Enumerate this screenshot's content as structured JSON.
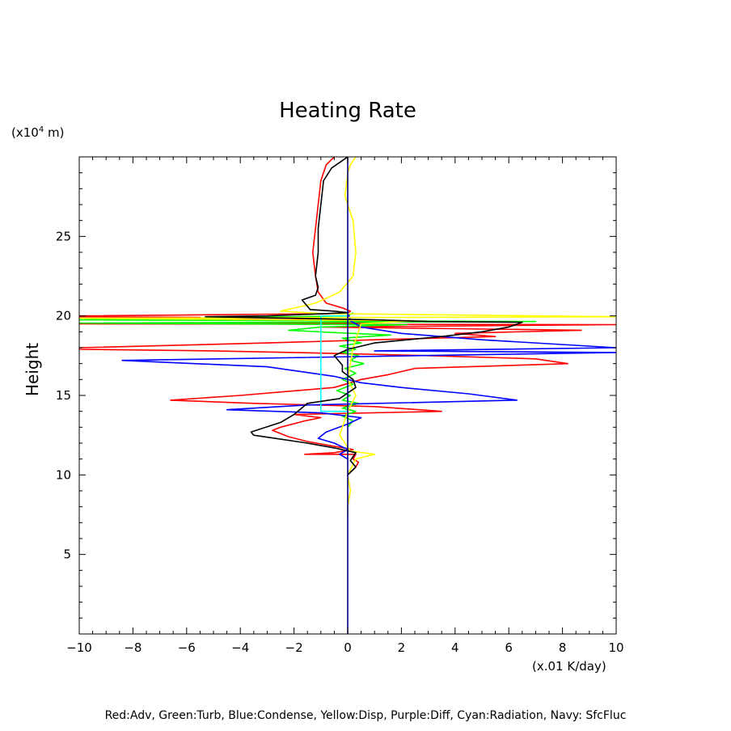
{
  "chart_data": {
    "type": "line",
    "title": "Heating Rate",
    "xlabel": "(x.01 K/day)",
    "ylabel": "Height",
    "y_unit": {
      "base": "(x10",
      "exponent": "4",
      "suffix": " m)"
    },
    "xlim": [
      -10,
      10
    ],
    "ylim": [
      0,
      30
    ],
    "x_ticks": [
      -10,
      -8,
      -6,
      -4,
      -2,
      0,
      2,
      4,
      6,
      8,
      10
    ],
    "y_ticks": [
      5,
      10,
      15,
      20,
      25
    ],
    "grid": false,
    "note": "Red:Adv, Green:Turb, Blue:Condense, Yellow:Disp, Purple:Diff, Cyan:Radiation, Navy: SfcFluc",
    "series": [
      {
        "name": "Adv",
        "color": "#ff0000",
        "points": [
          [
            -0.5,
            30
          ],
          [
            -0.8,
            29.5
          ],
          [
            -1.0,
            28.5
          ],
          [
            -1.1,
            27
          ],
          [
            -1.2,
            25.5
          ],
          [
            -1.3,
            24
          ],
          [
            -1.2,
            22.5
          ],
          [
            -1.1,
            21.5
          ],
          [
            -0.8,
            20.8
          ],
          [
            -0.2,
            20.5
          ],
          [
            0.1,
            20.3
          ],
          [
            0,
            20.15
          ],
          [
            -10,
            20.0
          ],
          [
            -10,
            19.95
          ],
          [
            -5.5,
            19.9
          ],
          [
            -8,
            19.85
          ],
          [
            -1,
            19.75
          ],
          [
            2,
            19.65
          ],
          [
            1,
            19.55
          ],
          [
            -10,
            19.5
          ],
          [
            10,
            19.45
          ],
          [
            -1,
            19.3
          ],
          [
            8.7,
            19.1
          ],
          [
            4,
            18.9
          ],
          [
            5.5,
            18.7
          ],
          [
            1,
            18.5
          ],
          [
            -3,
            18.3
          ],
          [
            -10,
            18.0
          ],
          [
            -10,
            17.9
          ],
          [
            -5,
            17.8
          ],
          [
            -2,
            17.7
          ],
          [
            3,
            17.5
          ],
          [
            7,
            17.3
          ],
          [
            8.2,
            17.0
          ],
          [
            2.5,
            16.7
          ],
          [
            1.5,
            16.3
          ],
          [
            0.5,
            16.0
          ],
          [
            -0.5,
            15.5
          ],
          [
            -4,
            15.0
          ],
          [
            -6.6,
            14.7
          ],
          [
            -3.5,
            14.5
          ],
          [
            1,
            14.3
          ],
          [
            3.5,
            14.0
          ],
          [
            -2,
            13.8
          ],
          [
            -1,
            13.6
          ],
          [
            -1.6,
            13.4
          ],
          [
            -2.5,
            13.0
          ],
          [
            -2.8,
            12.8
          ],
          [
            -2.2,
            12.4
          ],
          [
            -1.5,
            12.1
          ],
          [
            -0.5,
            11.8
          ],
          [
            0.2,
            11.6
          ],
          [
            -0.5,
            11.4
          ],
          [
            -1.6,
            11.3
          ],
          [
            0.3,
            11.3
          ],
          [
            0.2,
            11.0
          ],
          [
            0.4,
            10.8
          ],
          [
            0.3,
            10.5
          ],
          [
            0.0,
            10.0
          ]
        ]
      },
      {
        "name": "Turb",
        "color": "#00ff00",
        "points": [
          [
            0.2,
            20.2
          ],
          [
            0,
            20.0
          ],
          [
            -4,
            19.9
          ],
          [
            -10,
            19.75
          ],
          [
            7,
            19.65
          ],
          [
            -10,
            19.55
          ],
          [
            2.2,
            19.45
          ],
          [
            -1,
            19.3
          ],
          [
            -2.2,
            19.1
          ],
          [
            -0.5,
            18.95
          ],
          [
            1.6,
            18.8
          ],
          [
            -0.2,
            18.6
          ],
          [
            0.5,
            18.3
          ],
          [
            -0.3,
            18.1
          ],
          [
            0.3,
            17.9
          ],
          [
            -0.2,
            17.7
          ],
          [
            0.4,
            17.5
          ],
          [
            0.1,
            17.2
          ],
          [
            0.6,
            17.0
          ],
          [
            -0.1,
            16.7
          ],
          [
            0.3,
            16.4
          ],
          [
            -0.2,
            16.0
          ],
          [
            0.2,
            15.7
          ],
          [
            -0.4,
            15.3
          ],
          [
            0.1,
            15.0
          ],
          [
            -0.2,
            14.7
          ],
          [
            0.4,
            14.5
          ],
          [
            -0.2,
            14.2
          ],
          [
            0.3,
            14.0
          ],
          [
            -0.2,
            13.7
          ],
          [
            0.2,
            13.4
          ],
          [
            0,
            13.0
          ]
        ]
      },
      {
        "name": "Condense",
        "color": "#0000ff",
        "points": [
          [
            0,
            20.3
          ],
          [
            0.1,
            19.7
          ],
          [
            0.5,
            19.3
          ],
          [
            2,
            18.9
          ],
          [
            5,
            18.5
          ],
          [
            10,
            18.0
          ],
          [
            1,
            17.8
          ],
          [
            10,
            17.7
          ],
          [
            -8.4,
            17.2
          ],
          [
            -3,
            16.8
          ],
          [
            -0.5,
            16.2
          ],
          [
            0.5,
            15.8
          ],
          [
            2,
            15.5
          ],
          [
            4.5,
            15.1
          ],
          [
            6.3,
            14.7
          ],
          [
            -1.5,
            14.4
          ],
          [
            -4.5,
            14.1
          ],
          [
            -1,
            13.9
          ],
          [
            0.5,
            13.6
          ],
          [
            0,
            13.2
          ],
          [
            -0.8,
            12.7
          ],
          [
            -1.1,
            12.3
          ],
          [
            -0.5,
            12.0
          ],
          [
            0,
            11.6
          ],
          [
            -0.3,
            11.3
          ],
          [
            0,
            11.0
          ]
        ]
      },
      {
        "name": "Disp",
        "color": "#ffff00",
        "points": [
          [
            0.3,
            30
          ],
          [
            0.1,
            29.5
          ],
          [
            0,
            29
          ],
          [
            -0.1,
            27.5
          ],
          [
            0.2,
            26
          ],
          [
            0.3,
            24
          ],
          [
            0.2,
            22.5
          ],
          [
            -0.3,
            21.5
          ],
          [
            -1.2,
            20.8
          ],
          [
            -2.5,
            20.3
          ],
          [
            -1,
            20.15
          ],
          [
            10,
            19.95
          ],
          [
            -10,
            19.85
          ],
          [
            2.5,
            19.7
          ],
          [
            0.5,
            19.5
          ],
          [
            0.2,
            18.0
          ],
          [
            0,
            16.0
          ],
          [
            0.3,
            15.0
          ],
          [
            0,
            14.0
          ],
          [
            -0.3,
            12.5
          ],
          [
            0.1,
            11.5
          ],
          [
            1,
            11.3
          ],
          [
            0.3,
            11.0
          ],
          [
            0,
            10.0
          ],
          [
            0.1,
            9.0
          ],
          [
            0,
            8.0
          ],
          [
            0,
            7.5
          ]
        ]
      },
      {
        "name": "Radiation",
        "color": "#00ffff",
        "points": [
          [
            0,
            20.0
          ],
          [
            -1,
            20.0
          ],
          [
            -1,
            14.0
          ],
          [
            0,
            14.0
          ]
        ]
      },
      {
        "name": "Diff",
        "color": "#000000",
        "points": [
          [
            0,
            30
          ],
          [
            -0.6,
            29.3
          ],
          [
            -0.9,
            28.5
          ],
          [
            -1.0,
            27
          ],
          [
            -1.1,
            25.5
          ],
          [
            -1.1,
            24
          ],
          [
            -1.2,
            22.5
          ],
          [
            -1.1,
            21.8
          ],
          [
            -1.2,
            21.3
          ],
          [
            -1.7,
            21
          ],
          [
            -1.4,
            20.4
          ],
          [
            -0.5,
            20.3
          ],
          [
            0,
            20.2
          ],
          [
            -3,
            20.0
          ],
          [
            -5.3,
            19.95
          ],
          [
            -2,
            19.85
          ],
          [
            1,
            19.75
          ],
          [
            3,
            19.65
          ],
          [
            6.5,
            19.6
          ],
          [
            6,
            19.3
          ],
          [
            5,
            19.0
          ],
          [
            3.5,
            18.7
          ],
          [
            1,
            18.3
          ],
          [
            0,
            17.9
          ],
          [
            -0.5,
            17.5
          ],
          [
            -0.2,
            16.9
          ],
          [
            -0.2,
            16.5
          ],
          [
            0.2,
            16.0
          ],
          [
            0.3,
            15.5
          ],
          [
            -0.3,
            14.8
          ],
          [
            -1.5,
            14.5
          ],
          [
            -2,
            13.8
          ],
          [
            -2.5,
            13.3
          ],
          [
            -3.6,
            12.7
          ],
          [
            -3.5,
            12.5
          ],
          [
            -1.5,
            12.0
          ],
          [
            -0.5,
            11.7
          ],
          [
            0.3,
            11.4
          ],
          [
            0.1,
            10.9
          ],
          [
            0.3,
            10.5
          ],
          [
            0,
            10.0
          ]
        ]
      },
      {
        "name": "SfcFluc",
        "color": "#000080",
        "points": [
          [
            0,
            30
          ],
          [
            0,
            0
          ]
        ]
      }
    ]
  }
}
